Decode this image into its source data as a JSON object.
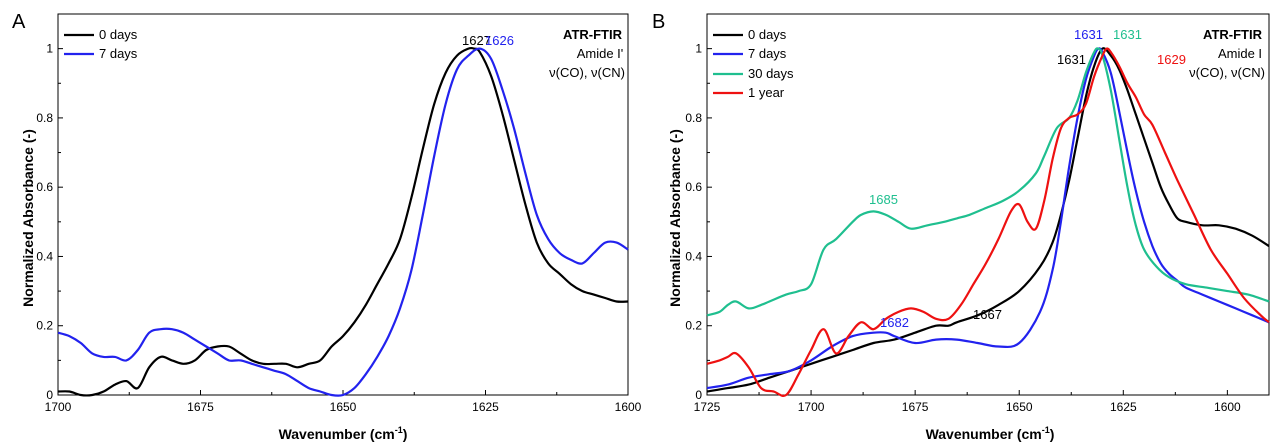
{
  "panels": [
    {
      "letter": "A",
      "annotation": {
        "title": "ATR-FTIR",
        "line1": "Amide I'",
        "line2": "ν(CO), ν(CN)"
      },
      "xlabel_main": "Wavenumber (cm",
      "xlabel_sup": "-1",
      "xlabel_end": ")",
      "ylabel": "Normalized Absorbance (-)",
      "x_ticks": [
        1700,
        1675,
        1650,
        1625,
        1600
      ],
      "x_tick_labels": [
        "1700",
        "1675",
        "1650",
        "1625",
        "1600"
      ],
      "y_ticks": [
        0,
        0.2,
        0.4,
        0.6,
        0.8,
        1
      ],
      "y_tick_labels": [
        "0",
        "0.2",
        "0.4",
        "0.6",
        "0.8",
        "1"
      ],
      "legend": [
        "0 days",
        "7 days"
      ],
      "peak_labels": [
        {
          "text": "1627",
          "color": "#000000"
        },
        {
          "text": "1626",
          "color": "#2222ee"
        }
      ]
    },
    {
      "letter": "B",
      "annotation": {
        "title": "ATR-FTIR",
        "line1": "Amide I",
        "line2": "ν(CO), ν(CN)"
      },
      "xlabel_main": "Wavenumber (cm",
      "xlabel_sup": "-1",
      "xlabel_end": ")",
      "ylabel": "Normalized Absorbance (-)",
      "x_ticks": [
        1725,
        1700,
        1675,
        1650,
        1625,
        1600
      ],
      "x_tick_labels": [
        "1725",
        "1700",
        "1675",
        "1650",
        "1625",
        "1600"
      ],
      "y_ticks": [
        0,
        0.2,
        0.4,
        0.6,
        0.8,
        1
      ],
      "y_tick_labels": [
        "0",
        "0.2",
        "0.4",
        "0.6",
        "0.8",
        "1"
      ],
      "legend": [
        "0 days",
        "7 days",
        "30 days",
        "1 year"
      ],
      "peak_labels": [
        {
          "text": "1631",
          "color": "#2222ee"
        },
        {
          "text": "1631",
          "color": "#1fbf8f"
        },
        {
          "text": "1631",
          "color": "#000000"
        },
        {
          "text": "1629",
          "color": "#ee1111"
        },
        {
          "text": "1685",
          "color": "#1fbf8f"
        },
        {
          "text": "1682",
          "color": "#2222ee"
        },
        {
          "text": "1667",
          "color": "#000000"
        }
      ]
    }
  ],
  "chart_data": [
    {
      "type": "line",
      "xlabel": "Wavenumber (cm-1)",
      "ylabel": "Normalized Absorbance (-)",
      "xlim": [
        1700,
        1600
      ],
      "ylim": [
        0,
        1.1
      ],
      "legend_position": "top-left",
      "series": [
        {
          "name": "0 days",
          "color": "#000000",
          "x": [
            1700,
            1698,
            1696,
            1694,
            1692,
            1690,
            1688,
            1686,
            1684,
            1682,
            1680,
            1678,
            1676,
            1674,
            1672,
            1670,
            1668,
            1666,
            1664,
            1662,
            1660,
            1658,
            1656,
            1654,
            1652,
            1650,
            1648,
            1646,
            1644,
            1642,
            1640,
            1638,
            1636,
            1634,
            1632,
            1630,
            1628,
            1627,
            1626,
            1624,
            1622,
            1620,
            1618,
            1616,
            1614,
            1612,
            1610,
            1608,
            1606,
            1604,
            1602,
            1600
          ],
          "y": [
            0.01,
            0.01,
            0.0,
            0.0,
            0.01,
            0.03,
            0.04,
            0.02,
            0.08,
            0.11,
            0.1,
            0.09,
            0.1,
            0.13,
            0.14,
            0.14,
            0.12,
            0.1,
            0.09,
            0.09,
            0.09,
            0.08,
            0.09,
            0.1,
            0.14,
            0.17,
            0.21,
            0.26,
            0.32,
            0.38,
            0.45,
            0.57,
            0.71,
            0.84,
            0.93,
            0.98,
            1.0,
            1.0,
            0.99,
            0.92,
            0.81,
            0.68,
            0.55,
            0.44,
            0.38,
            0.35,
            0.32,
            0.3,
            0.29,
            0.28,
            0.27,
            0.27
          ]
        },
        {
          "name": "7 days",
          "color": "#2222ee",
          "x": [
            1700,
            1698,
            1696,
            1694,
            1692,
            1690,
            1688,
            1686,
            1684,
            1682,
            1680,
            1678,
            1676,
            1674,
            1672,
            1670,
            1668,
            1666,
            1664,
            1662,
            1660,
            1658,
            1656,
            1654,
            1652,
            1650,
            1648,
            1646,
            1644,
            1642,
            1640,
            1638,
            1636,
            1634,
            1632,
            1630,
            1628,
            1626,
            1624,
            1622,
            1620,
            1618,
            1616,
            1614,
            1612,
            1610,
            1608,
            1606,
            1604,
            1602,
            1600
          ],
          "y": [
            0.18,
            0.17,
            0.15,
            0.12,
            0.11,
            0.11,
            0.1,
            0.13,
            0.18,
            0.19,
            0.19,
            0.18,
            0.16,
            0.14,
            0.12,
            0.1,
            0.1,
            0.09,
            0.08,
            0.07,
            0.06,
            0.04,
            0.02,
            0.01,
            0.0,
            0.0,
            0.02,
            0.06,
            0.11,
            0.17,
            0.25,
            0.36,
            0.52,
            0.69,
            0.84,
            0.94,
            0.98,
            1.0,
            0.97,
            0.88,
            0.77,
            0.64,
            0.52,
            0.45,
            0.41,
            0.39,
            0.38,
            0.41,
            0.44,
            0.44,
            0.42
          ]
        }
      ],
      "annotations": [
        "1627",
        "1626"
      ]
    },
    {
      "type": "line",
      "xlabel": "Wavenumber (cm-1)",
      "ylabel": "Normalized Absorbance (-)",
      "xlim": [
        1725,
        1590
      ],
      "ylim": [
        0,
        1.1
      ],
      "legend_position": "top-left",
      "series": [
        {
          "name": "0 days",
          "color": "#000000",
          "x": [
            1725,
            1720,
            1715,
            1710,
            1705,
            1700,
            1695,
            1690,
            1685,
            1680,
            1675,
            1670,
            1667,
            1665,
            1660,
            1655,
            1650,
            1645,
            1642,
            1640,
            1638,
            1636,
            1634,
            1632,
            1630,
            1628,
            1626,
            1624,
            1622,
            1620,
            1618,
            1616,
            1614,
            1612,
            1610,
            1606,
            1602,
            1598,
            1594,
            1590
          ],
          "y": [
            0.01,
            0.02,
            0.03,
            0.05,
            0.07,
            0.09,
            0.11,
            0.13,
            0.15,
            0.16,
            0.18,
            0.2,
            0.2,
            0.21,
            0.23,
            0.26,
            0.3,
            0.37,
            0.44,
            0.52,
            0.62,
            0.74,
            0.86,
            0.95,
            1.0,
            0.98,
            0.94,
            0.88,
            0.81,
            0.74,
            0.67,
            0.6,
            0.55,
            0.51,
            0.5,
            0.49,
            0.49,
            0.48,
            0.46,
            0.43
          ]
        },
        {
          "name": "7 days",
          "color": "#2222ee",
          "x": [
            1725,
            1720,
            1715,
            1710,
            1705,
            1700,
            1695,
            1690,
            1685,
            1682,
            1680,
            1675,
            1670,
            1665,
            1660,
            1655,
            1650,
            1645,
            1642,
            1640,
            1638,
            1636,
            1634,
            1632,
            1631,
            1630,
            1628,
            1626,
            1624,
            1622,
            1620,
            1618,
            1616,
            1614,
            1612,
            1610,
            1606,
            1602,
            1598,
            1594,
            1590
          ],
          "y": [
            0.02,
            0.03,
            0.05,
            0.06,
            0.07,
            0.1,
            0.14,
            0.17,
            0.18,
            0.18,
            0.17,
            0.15,
            0.16,
            0.16,
            0.15,
            0.14,
            0.15,
            0.24,
            0.36,
            0.5,
            0.66,
            0.8,
            0.91,
            0.98,
            1.0,
            0.99,
            0.93,
            0.82,
            0.7,
            0.59,
            0.5,
            0.43,
            0.38,
            0.35,
            0.33,
            0.31,
            0.29,
            0.27,
            0.25,
            0.23,
            0.21
          ]
        },
        {
          "name": "30 days",
          "color": "#1fbf8f",
          "x": [
            1725,
            1722,
            1720,
            1718,
            1715,
            1712,
            1710,
            1706,
            1703,
            1700,
            1697,
            1694,
            1690,
            1688,
            1685,
            1682,
            1679,
            1676,
            1672,
            1668,
            1665,
            1662,
            1658,
            1654,
            1650,
            1646,
            1644,
            1641,
            1638,
            1636,
            1634,
            1632,
            1631,
            1630,
            1628,
            1626,
            1624,
            1622,
            1620,
            1617,
            1614,
            1610,
            1605,
            1600,
            1595,
            1590
          ],
          "y": [
            0.23,
            0.24,
            0.26,
            0.27,
            0.25,
            0.26,
            0.27,
            0.29,
            0.3,
            0.32,
            0.42,
            0.45,
            0.5,
            0.52,
            0.53,
            0.52,
            0.5,
            0.48,
            0.49,
            0.5,
            0.51,
            0.52,
            0.54,
            0.56,
            0.59,
            0.64,
            0.69,
            0.77,
            0.8,
            0.85,
            0.93,
            0.99,
            1.0,
            0.98,
            0.88,
            0.74,
            0.6,
            0.49,
            0.42,
            0.37,
            0.34,
            0.32,
            0.31,
            0.3,
            0.29,
            0.27
          ]
        },
        {
          "name": "1 year",
          "color": "#ee1111",
          "x": [
            1725,
            1722,
            1720,
            1718,
            1715,
            1712,
            1709,
            1706,
            1703,
            1700,
            1697,
            1694,
            1691,
            1688,
            1685,
            1682,
            1679,
            1676,
            1673,
            1670,
            1667,
            1664,
            1661,
            1658,
            1655,
            1652,
            1650,
            1648,
            1646,
            1644,
            1642,
            1640,
            1638,
            1636,
            1634,
            1632,
            1630,
            1629,
            1628,
            1626,
            1624,
            1622,
            1620,
            1618,
            1615,
            1612,
            1608,
            1604,
            1600,
            1596,
            1592,
            1590
          ],
          "y": [
            0.09,
            0.1,
            0.11,
            0.12,
            0.08,
            0.02,
            0.01,
            0.0,
            0.06,
            0.13,
            0.19,
            0.12,
            0.17,
            0.21,
            0.19,
            0.22,
            0.24,
            0.25,
            0.24,
            0.22,
            0.22,
            0.26,
            0.32,
            0.38,
            0.45,
            0.53,
            0.55,
            0.5,
            0.48,
            0.56,
            0.68,
            0.77,
            0.8,
            0.81,
            0.84,
            0.92,
            0.98,
            1.0,
            0.99,
            0.95,
            0.9,
            0.86,
            0.81,
            0.78,
            0.7,
            0.62,
            0.52,
            0.42,
            0.35,
            0.28,
            0.23,
            0.21
          ]
        }
      ],
      "annotations": [
        "1631",
        "1631",
        "1631",
        "1629",
        "1685",
        "1682",
        "1667"
      ]
    }
  ]
}
